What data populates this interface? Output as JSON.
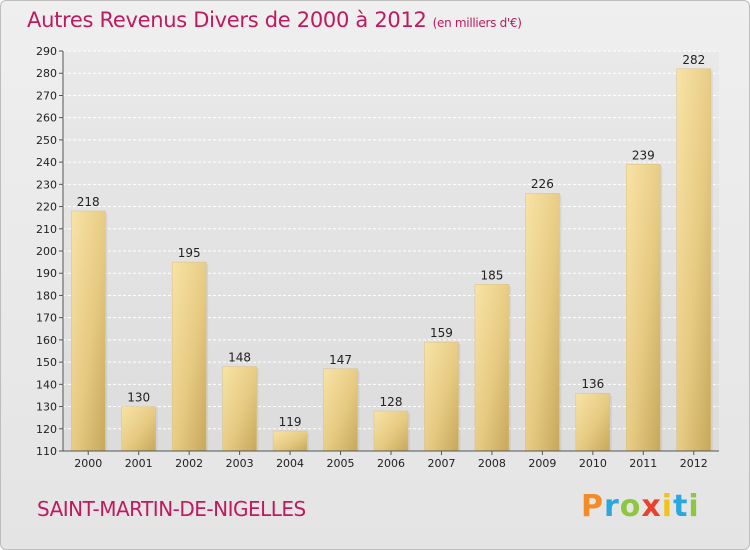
{
  "header": {
    "title": "Autres Revenus Divers de 2000 à 2012",
    "unit": "(en milliers d'€)"
  },
  "footer": {
    "commune": "SAINT-MARTIN-DE-NIGELLES",
    "logo_text": "Proxiti",
    "logo_colors": [
      "#f28c28",
      "#2aa7df",
      "#8dc63f",
      "#e8412c",
      "#f2c21b",
      "#2aa7df",
      "#8dc63f"
    ]
  },
  "colors": {
    "title": "#c0195f",
    "bar_light": "#f6dd9c",
    "bar_dark": "#c8aa5c",
    "grid": "#ffffff",
    "axis_text": "#222222"
  },
  "chart_data": {
    "type": "bar",
    "title": "Autres Revenus Divers de 2000 à 2012",
    "xlabel": "",
    "ylabel": "",
    "categories": [
      "2000",
      "2001",
      "2002",
      "2003",
      "2004",
      "2005",
      "2006",
      "2007",
      "2008",
      "2009",
      "2010",
      "2011",
      "2012"
    ],
    "values": [
      218,
      130,
      195,
      148,
      119,
      147,
      128,
      159,
      185,
      226,
      136,
      239,
      282
    ],
    "ylim": [
      110,
      290
    ],
    "yticks": [
      110,
      120,
      130,
      140,
      150,
      160,
      170,
      180,
      190,
      200,
      210,
      220,
      230,
      240,
      250,
      260,
      270,
      280,
      290
    ],
    "grid": true
  }
}
